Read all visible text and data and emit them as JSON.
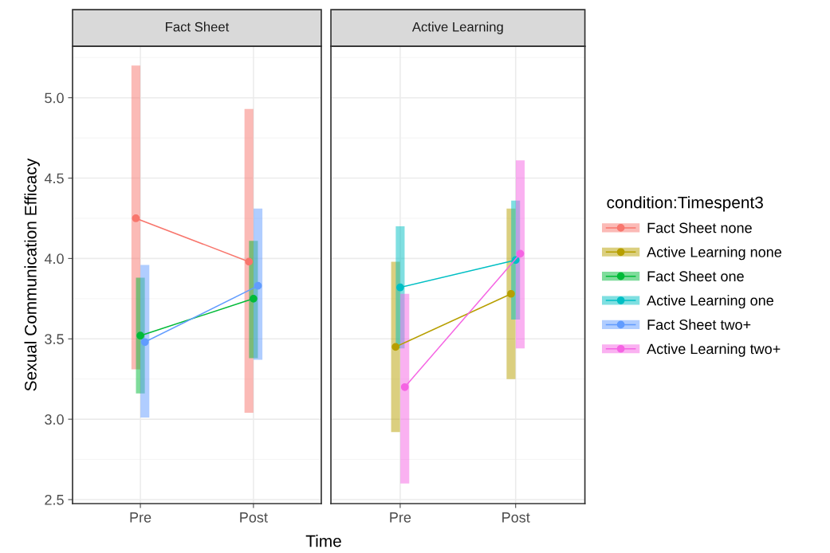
{
  "chart_data": [
    {
      "type": "line",
      "title": "Fact Sheet",
      "ylabel": "Sexual Communication Efficacy",
      "categories": [
        "Pre",
        "Post"
      ],
      "ylim": [
        2.475,
        5.32
      ],
      "yticks": [
        2.5,
        {
          "value": 3,
          "label": "3.0"
        },
        3.5,
        {
          "value": 4,
          "label": "4.0"
        },
        4.5,
        {
          "value": 5,
          "label": "5.0"
        }
      ],
      "tick_labels": true,
      "grid": true,
      "marker": "circle",
      "line_style": "solid",
      "legend": "right",
      "series": [
        {
          "name": "Fact Sheet none",
          "color": "#f8766d",
          "values": [
            4.25,
            3.98
          ],
          "errors": [
            [
              3.31,
              5.2
            ],
            [
              3.04,
              4.93
            ]
          ]
        },
        {
          "name": "Fact Sheet one",
          "color": "#00ba38",
          "values": [
            3.52,
            3.75
          ],
          "errors": [
            [
              3.16,
              3.88
            ],
            [
              3.38,
              4.11
            ]
          ]
        },
        {
          "name": "Fact Sheet two+",
          "color": "#619cff",
          "values": [
            3.48,
            3.83
          ],
          "errors": [
            [
              3.01,
              3.96
            ],
            [
              3.37,
              4.31
            ]
          ]
        }
      ]
    },
    {
      "type": "line",
      "title": "Active Learning",
      "xlabel": "Time",
      "legend_title": "condition:Timespent3",
      "categories": [
        "Pre",
        "Post"
      ],
      "ylim": [
        2.475,
        5.32
      ],
      "yticks": [
        2.5,
        3,
        3.5,
        4,
        4.5,
        5
      ],
      "tick_labels": "x",
      "grid": true,
      "marker": "circle",
      "line_style": "solid",
      "legend": "right",
      "series": [
        {
          "name": "Active Learning none",
          "color": "#b79f00",
          "values": [
            3.45,
            3.78
          ],
          "errors": [
            [
              2.92,
              3.98
            ],
            [
              3.25,
              4.31
            ]
          ]
        },
        {
          "name": "Active Learning one",
          "color": "#00bfc4",
          "values": [
            3.82,
            3.99
          ],
          "errors": [
            [
              3.44,
              4.2
            ],
            [
              3.62,
              4.36
            ]
          ]
        },
        {
          "name": "Active Learning two+",
          "color": "#f564e3",
          "values": [
            3.2,
            4.03
          ],
          "errors": [
            [
              2.6,
              3.78
            ],
            [
              3.44,
              4.61
            ]
          ]
        }
      ]
    }
  ]
}
